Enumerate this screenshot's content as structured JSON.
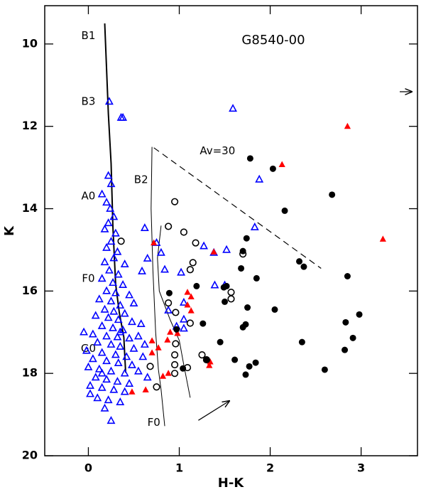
{
  "chart_data": {
    "type": "scatter",
    "title": "G8540-00",
    "x_label": "H-K",
    "y_label": "K",
    "xlim": [
      -0.48,
      3.62
    ],
    "ylim": [
      20,
      9.07
    ],
    "xticks": [
      0,
      1,
      2,
      3
    ],
    "yticks": [
      10,
      12,
      14,
      16,
      18,
      20
    ],
    "annotations": [
      "B1",
      "B3",
      "A0",
      "F0",
      "G0",
      "B2",
      "F0",
      "Av=30"
    ],
    "series": [
      {
        "marker": "triangle-open",
        "color": "#0000ff",
        "x": [
          0.23,
          0.36,
          0.38,
          1.59,
          1.88,
          1.83,
          1.38,
          1.52,
          1.5,
          1.39,
          1.27,
          1.02,
          0.62,
          0.75,
          0.8,
          0.65,
          0.59,
          0.84,
          1.05,
          0.88,
          0.97,
          1.05,
          1.05,
          0.15,
          0.22,
          0.25,
          0.2,
          0.24,
          0.28,
          0.22,
          0.18,
          0.3,
          0.25,
          0.2,
          0.32,
          0.28,
          0.18,
          0.4,
          0.23,
          0.33,
          0.15,
          0.27,
          0.38,
          0.2,
          0.3,
          0.45,
          0.12,
          0.25,
          0.35,
          0.5,
          0.18,
          0.28,
          0.4,
          0.08,
          0.22,
          0.33,
          0.48,
          0.15,
          0.27,
          0.38,
          -0.05,
          0.05,
          0.2,
          0.32,
          0.45,
          0.55,
          0.1,
          0.25,
          0.35,
          0.5,
          -0.02,
          0.15,
          0.3,
          0.42,
          0.05,
          0.2,
          0.33,
          0.48,
          0.0,
          0.12,
          0.25,
          0.4,
          0.55,
          0.08,
          0.2,
          0.32,
          0.45,
          0.02,
          0.15,
          0.28,
          0.4,
          0.1,
          0.22,
          0.35,
          0.18,
          0.02,
          0.25,
          0.6,
          0.65,
          0.58,
          0.62,
          0.15,
          0.35
        ],
        "values": [
          11.4,
          11.79,
          11.79,
          11.57,
          13.29,
          14.45,
          15.07,
          15.0,
          15.86,
          15.86,
          14.91,
          15.55,
          14.47,
          14.83,
          15.07,
          15.21,
          15.52,
          15.48,
          16.28,
          16.47,
          16.86,
          16.69,
          16.91,
          13.65,
          13.2,
          13.4,
          13.85,
          14.0,
          14.2,
          14.35,
          14.5,
          14.6,
          14.8,
          14.95,
          15.05,
          15.2,
          15.3,
          15.35,
          15.5,
          15.6,
          15.7,
          15.8,
          15.85,
          16.0,
          16.05,
          16.1,
          16.2,
          16.25,
          16.35,
          16.3,
          16.45,
          16.5,
          16.55,
          16.6,
          16.65,
          16.7,
          16.75,
          16.85,
          16.9,
          16.95,
          17.0,
          17.05,
          17.1,
          17.12,
          17.15,
          17.1,
          17.25,
          17.3,
          17.35,
          17.4,
          17.45,
          17.5,
          17.55,
          17.6,
          17.65,
          17.7,
          17.75,
          17.8,
          17.85,
          17.9,
          17.95,
          18.0,
          17.95,
          18.1,
          18.15,
          18.2,
          18.25,
          18.3,
          18.35,
          18.4,
          18.45,
          18.6,
          18.65,
          18.7,
          18.85,
          18.5,
          19.15,
          17.6,
          18.1,
          16.8,
          17.3,
          18.0,
          17.0
        ]
      },
      {
        "marker": "triangle-filled",
        "color": "#ff0000",
        "x": [
          2.85,
          2.13,
          3.24,
          0.72,
          1.38,
          1.09,
          1.13,
          1.09,
          1.13,
          0.7,
          0.9,
          0.87,
          0.7,
          0.77,
          1.34,
          1.33,
          0.88,
          0.82,
          0.63,
          0.48,
          0.98
        ],
        "values": [
          12.0,
          12.93,
          14.74,
          14.83,
          15.05,
          16.03,
          16.14,
          16.34,
          16.48,
          17.21,
          17.0,
          17.19,
          17.5,
          17.38,
          17.72,
          17.81,
          18.0,
          18.07,
          18.4,
          18.45,
          17.03
        ]
      },
      {
        "marker": "circle-open",
        "color": "#000000",
        "x": [
          0.95,
          0.88,
          1.05,
          1.18,
          1.7,
          1.15,
          1.12,
          1.57,
          1.57,
          0.88,
          0.96,
          1.12,
          0.96,
          0.95,
          1.25,
          1.3,
          0.95,
          1.09,
          0.68,
          0.95,
          0.75,
          0.36
        ],
        "values": [
          13.83,
          14.43,
          14.57,
          14.83,
          15.1,
          15.31,
          15.48,
          16.03,
          16.19,
          16.29,
          16.52,
          16.78,
          17.28,
          17.55,
          17.55,
          17.67,
          17.79,
          17.86,
          17.83,
          18.0,
          18.33,
          14.79
        ]
      },
      {
        "marker": "circle-filled",
        "color": "#000000",
        "x": [
          1.78,
          2.03,
          2.68,
          2.16,
          1.74,
          1.7,
          2.32,
          2.37,
          1.68,
          1.85,
          2.85,
          1.19,
          1.52,
          1.49,
          0.89,
          1.5,
          2.05,
          1.75,
          1.26,
          1.73,
          1.7,
          2.98,
          2.83,
          0.97,
          2.91,
          1.45,
          2.35,
          2.82,
          1.3,
          1.61,
          1.84,
          1.77,
          2.6,
          1.73,
          1.04
        ],
        "values": [
          12.78,
          13.03,
          13.66,
          14.05,
          14.72,
          15.03,
          15.28,
          15.41,
          15.45,
          15.69,
          15.64,
          15.88,
          15.88,
          15.91,
          16.05,
          16.26,
          16.45,
          16.4,
          16.79,
          16.81,
          16.88,
          16.57,
          16.76,
          16.93,
          17.14,
          17.24,
          17.24,
          17.43,
          17.66,
          17.67,
          17.74,
          17.83,
          17.91,
          18.03,
          17.88
        ]
      }
    ],
    "lines": [
      {
        "dash": false,
        "width": 2,
        "x": [
          0.18,
          0.2,
          0.22,
          0.25,
          0.27,
          0.3,
          0.34,
          0.39,
          0.41
        ],
        "values": [
          9.5,
          10.6,
          11.7,
          12.9,
          14.45,
          15.83,
          16.52,
          17.12,
          17.98
        ]
      },
      {
        "dash": false,
        "width": 1,
        "x": [
          0.7,
          0.69,
          0.71,
          0.74,
          0.77,
          0.8,
          0.84
        ],
        "values": [
          12.5,
          14.0,
          15.5,
          17.0,
          17.9,
          18.4,
          19.28
        ]
      },
      {
        "dash": false,
        "width": 1,
        "x": [
          0.8,
          0.76,
          0.78,
          0.9,
          1.0,
          1.05,
          1.12
        ],
        "values": [
          14.41,
          15.2,
          16.0,
          16.7,
          17.2,
          17.8,
          18.59
        ]
      },
      {
        "dash": true,
        "width": 1.2,
        "x": [
          0.72,
          2.56
        ],
        "values": [
          12.52,
          15.45
        ]
      },
      {
        "dash": false,
        "width": 1.2,
        "arrow": true,
        "x": [
          1.21,
          1.55
        ],
        "values": [
          19.14,
          18.67
        ]
      }
    ]
  }
}
